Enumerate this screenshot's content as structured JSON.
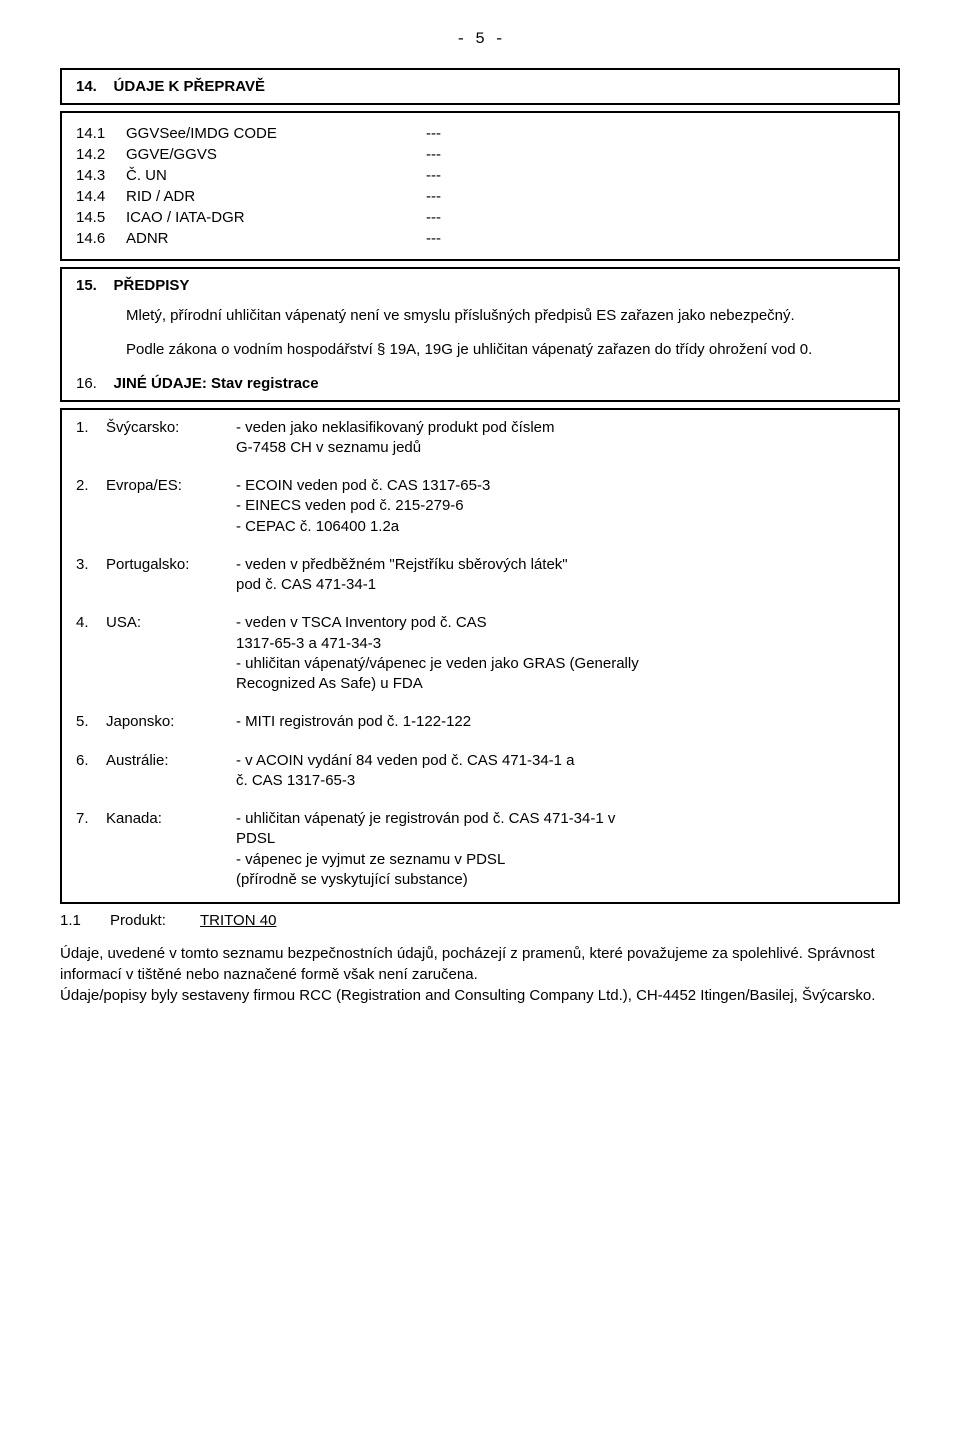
{
  "page_number": "- 5 -",
  "section14": {
    "num": "14.",
    "title": "ÚDAJE K PŘEPRAVĚ",
    "rows": [
      {
        "n": "14.1",
        "label": "GGVSee/IMDG CODE",
        "val": "---"
      },
      {
        "n": "14.2",
        "label": "GGVE/GGVS",
        "val": "---"
      },
      {
        "n": "14.3",
        "label": "Č. UN",
        "val": "---"
      },
      {
        "n": "14.4",
        "label": "RID / ADR",
        "val": "---"
      },
      {
        "n": "14.5",
        "label": "ICAO / IATA-DGR",
        "val": "---"
      },
      {
        "n": "14.6",
        "label": "ADNR",
        "val": "---"
      }
    ]
  },
  "section15": {
    "num": "15.",
    "title": "PŘEDPISY",
    "note1": "Mletý, přírodní uhličitan vápenatý  není ve smyslu příslušných předpisů ES zařazen jako nebezpečný.",
    "note2": "Podle zákona o vodním hospodářství § 19A, 19G je uhličitan vápenatý zařazen do třídy ohrožení vod 0.",
    "s16num": "16.",
    "s16title": "JINÉ ÚDAJE:  Stav registrace"
  },
  "registration": {
    "rows": [
      {
        "n": "1.",
        "country": "Švýcarsko:",
        "lines": [
          "- veden jako neklasifikovaný produkt pod číslem",
          "  G-7458 CH v seznamu jedů"
        ]
      },
      {
        "n": "2.",
        "country": "Evropa/ES:",
        "lines": [
          "- ECOIN veden pod č. CAS  1317-65-3",
          "- EINECS veden pod č. 215-279-6",
          "- CEPAC č. 106400 1.2a"
        ]
      },
      {
        "n": "3.",
        "country": "Portugalsko:",
        "lines": [
          "- veden v předběžném \"Rejstříku sběrových látek\"",
          "  pod č. CAS  471-34-1"
        ]
      },
      {
        "n": "4.",
        "country": "USA:",
        "lines": [
          "- veden v TSCA Inventory pod č. CAS",
          "  1317-65-3 a 471-34-3",
          "- uhličitan vápenatý/vápenec je veden jako  GRAS (Generally",
          "  Recognized As Safe) u FDA"
        ]
      },
      {
        "n": "5.",
        "country": "Japonsko:",
        "lines": [
          "- MITI registrován pod č. 1-122-122"
        ]
      },
      {
        "n": "6.",
        "country": "Austrálie:",
        "lines": [
          "- v ACOIN vydání  84 veden pod č. CAS  471-34-1 a",
          "  č. CAS  1317-65-3"
        ]
      },
      {
        "n": "7.",
        "country": "Kanada:",
        "lines": [
          "- uhličitan vápenatý je registrován pod č. CAS  471-34-1 v",
          "  PDSL",
          "- vápenec je vyjmut ze seznamu v PDSL",
          "  (přírodně se vyskytující substance)"
        ]
      }
    ]
  },
  "product": {
    "num": "1.1",
    "label": "Produkt:",
    "value": "TRITON  40"
  },
  "footer": {
    "line1": "Údaje, uvedené v tomto seznamu bezpečnostních údajů, pocházejí z pramenů, které považujeme za spolehlivé. Správnost informací v tištěné nebo naznačené formě však není zaručena.",
    "line2": "Údaje/popisy byly sestaveny firmou RCC (Registration and Consulting Company Ltd.), CH-4452 Itingen/Basilej, Švýcarsko."
  }
}
